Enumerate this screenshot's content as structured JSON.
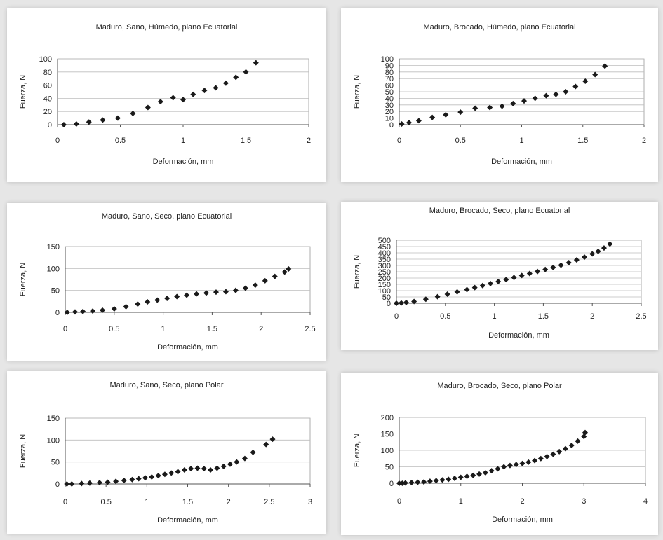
{
  "chart_data": [
    {
      "type": "scatter",
      "title": "Maduro, Sano, Húmedo, plano Ecuatorial",
      "xlabel": "Deformación, mm",
      "ylabel": "Fuerza, N",
      "xlim": [
        0,
        2
      ],
      "ylim": [
        0,
        100
      ],
      "xticks": [
        "0",
        "0.5",
        "1",
        "1.5",
        "2"
      ],
      "yticks": [
        "0",
        "20",
        "40",
        "60",
        "80",
        "100"
      ],
      "grid": true,
      "series": [
        {
          "marker": "diamond",
          "x": [
            0.05,
            0.15,
            0.25,
            0.36,
            0.48,
            0.6,
            0.72,
            0.82,
            0.92,
            1.0,
            1.08,
            1.17,
            1.26,
            1.34,
            1.42,
            1.5,
            1.58
          ],
          "y": [
            0,
            1,
            4,
            7,
            10,
            17,
            26,
            35,
            41,
            38,
            46,
            52,
            56,
            63,
            72,
            80,
            94
          ]
        }
      ]
    },
    {
      "type": "scatter",
      "title": "Maduro, Brocado, Húmedo, plano Ecuatorial",
      "xlabel": "Deformación, mm",
      "ylabel": "Fuerza, N",
      "xlim": [
        0,
        2
      ],
      "ylim": [
        0,
        100
      ],
      "xticks": [
        "0",
        "0.5",
        "1",
        "1.5",
        "2"
      ],
      "yticks": [
        "0",
        "10",
        "20",
        "30",
        "40",
        "50",
        "60",
        "70",
        "80",
        "90",
        "100"
      ],
      "grid": true,
      "series": [
        {
          "marker": "diamond",
          "x": [
            0.02,
            0.08,
            0.16,
            0.27,
            0.38,
            0.5,
            0.62,
            0.74,
            0.84,
            0.93,
            1.02,
            1.11,
            1.2,
            1.28,
            1.36,
            1.44,
            1.52,
            1.6,
            1.68
          ],
          "y": [
            1,
            3,
            6,
            11,
            15,
            19,
            25,
            26,
            28,
            32,
            36,
            40,
            44,
            46,
            50,
            58,
            66,
            76,
            89
          ]
        }
      ]
    },
    {
      "type": "scatter",
      "title": "Maduro, Sano, Seco, plano Ecuatorial",
      "xlabel": "Deformación, mm",
      "ylabel": "Fuerza, N",
      "xlim": [
        0,
        2.5
      ],
      "ylim": [
        0,
        150
      ],
      "xticks": [
        "0",
        "0.5",
        "1",
        "1.5",
        "2",
        "2.5"
      ],
      "yticks": [
        "0",
        "50",
        "100",
        "150"
      ],
      "grid": true,
      "series": [
        {
          "marker": "diamond",
          "x": [
            0.02,
            0.1,
            0.18,
            0.28,
            0.38,
            0.5,
            0.62,
            0.74,
            0.84,
            0.94,
            1.04,
            1.14,
            1.24,
            1.34,
            1.44,
            1.54,
            1.64,
            1.74,
            1.84,
            1.94,
            2.04,
            2.14,
            2.24,
            2.28
          ],
          "y": [
            0,
            1,
            2,
            3,
            5,
            8,
            13,
            19,
            24,
            28,
            32,
            36,
            39,
            42,
            44,
            46,
            47,
            50,
            55,
            62,
            72,
            82,
            92,
            99
          ]
        }
      ]
    },
    {
      "type": "scatter",
      "title": "Maduro, Brocado, Seco, plano Ecuatorial",
      "xlabel": "Deformación, mm",
      "ylabel": "Fuerza, N",
      "xlim": [
        0,
        2.5
      ],
      "ylim": [
        0,
        500
      ],
      "xticks": [
        "0",
        "0.5",
        "1",
        "1.5",
        "2",
        "2.5"
      ],
      "yticks": [
        "0",
        "50",
        "100",
        "150",
        "200",
        "250",
        "300",
        "350",
        "400",
        "450",
        "500"
      ],
      "grid": true,
      "series": [
        {
          "marker": "diamond",
          "x": [
            0.0,
            0.05,
            0.1,
            0.18,
            0.3,
            0.42,
            0.52,
            0.62,
            0.72,
            0.8,
            0.88,
            0.96,
            1.04,
            1.12,
            1.2,
            1.28,
            1.36,
            1.44,
            1.52,
            1.6,
            1.68,
            1.76,
            1.84,
            1.92,
            2.0,
            2.06,
            2.12,
            2.18
          ],
          "y": [
            0,
            2,
            6,
            14,
            32,
            52,
            72,
            90,
            108,
            124,
            140,
            156,
            172,
            188,
            204,
            220,
            236,
            252,
            268,
            284,
            302,
            322,
            344,
            366,
            392,
            412,
            438,
            470
          ]
        }
      ]
    },
    {
      "type": "scatter",
      "title": "Maduro, Sano, Seco, plano Polar",
      "xlabel": "Deformación, mm",
      "ylabel": "Fuerza, N",
      "xlim": [
        0,
        3
      ],
      "ylim": [
        0,
        150
      ],
      "xticks": [
        "0",
        "0.5",
        "1",
        "1.5",
        "2",
        "2.5",
        "3"
      ],
      "yticks": [
        "0",
        "50",
        "100",
        "150"
      ],
      "grid": true,
      "series": [
        {
          "marker": "diamond",
          "x": [
            0.02,
            0.08,
            0.2,
            0.3,
            0.42,
            0.52,
            0.62,
            0.72,
            0.82,
            0.9,
            0.98,
            1.06,
            1.14,
            1.22,
            1.3,
            1.38,
            1.46,
            1.54,
            1.62,
            1.7,
            1.78,
            1.86,
            1.94,
            2.02,
            2.1,
            2.2,
            2.3,
            2.46,
            2.54
          ],
          "y": [
            0,
            0,
            1,
            2,
            3,
            4,
            6,
            8,
            10,
            12,
            14,
            16,
            19,
            22,
            25,
            28,
            32,
            35,
            36,
            35,
            32,
            36,
            40,
            45,
            50,
            58,
            72,
            90,
            102
          ]
        }
      ]
    },
    {
      "type": "scatter",
      "title": "Maduro, Brocado, Seco, plano Polar",
      "xlabel": "Deformación, mm",
      "ylabel": "Fuerza, N",
      "xlim": [
        0,
        4
      ],
      "ylim": [
        0,
        200
      ],
      "xticks": [
        "0",
        "1",
        "2",
        "3",
        "4"
      ],
      "yticks": [
        "0",
        "50",
        "100",
        "150",
        "200"
      ],
      "grid": true,
      "series": [
        {
          "marker": "diamond",
          "x": [
            0.0,
            0.05,
            0.1,
            0.2,
            0.3,
            0.4,
            0.5,
            0.6,
            0.7,
            0.8,
            0.9,
            1.0,
            1.1,
            1.2,
            1.3,
            1.4,
            1.5,
            1.6,
            1.7,
            1.8,
            1.9,
            2.0,
            2.1,
            2.2,
            2.3,
            2.4,
            2.5,
            2.6,
            2.7,
            2.8,
            2.9,
            3.0,
            3.02
          ],
          "y": [
            0,
            0,
            1,
            2,
            3,
            4,
            6,
            8,
            10,
            12,
            15,
            18,
            21,
            24,
            28,
            32,
            38,
            44,
            50,
            54,
            57,
            60,
            64,
            69,
            75,
            81,
            88,
            96,
            105,
            115,
            128,
            142,
            154
          ]
        }
      ]
    }
  ]
}
